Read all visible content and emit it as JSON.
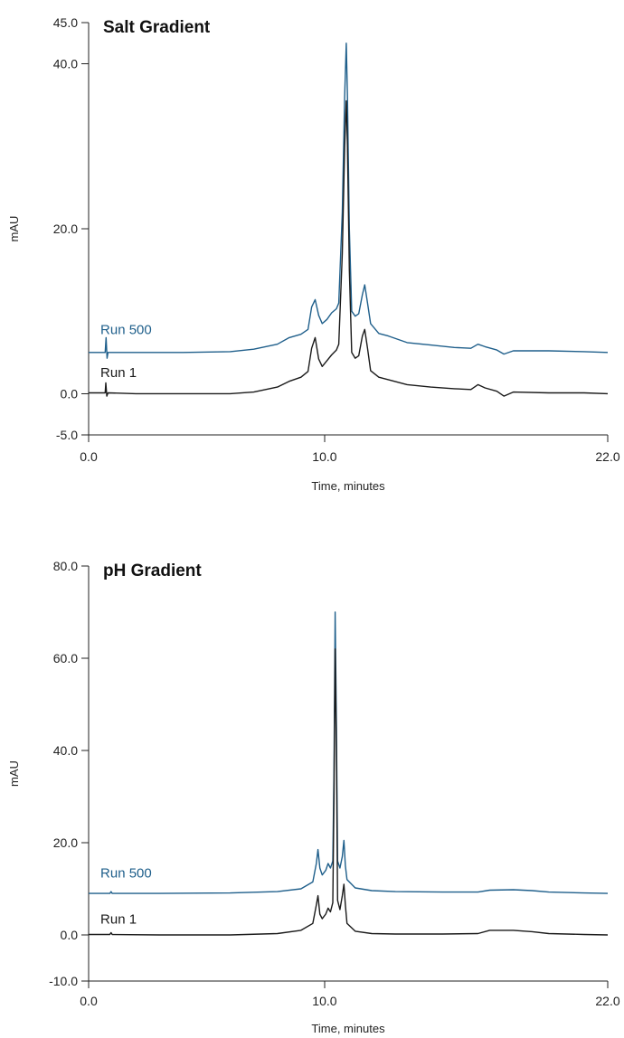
{
  "colors": {
    "run500": "#1f5f8b",
    "run1": "#1a1a1a",
    "axis": "#222222"
  },
  "chart_data": [
    {
      "type": "line",
      "title": "Salt Gradient",
      "xlabel": "Time, minutes",
      "ylabel": "mAU",
      "xlim": [
        0,
        22
      ],
      "ylim": [
        -5,
        45
      ],
      "x_ticks": [
        0,
        10,
        22
      ],
      "x_tick_labels": [
        "0.0",
        "10.0",
        "22.0"
      ],
      "y_ticks": [
        -5,
        0,
        20,
        40,
        45
      ],
      "y_tick_labels": [
        "-5.0",
        "0.0",
        "20.0",
        "40.0",
        "45.0"
      ],
      "series": [
        {
          "name": "Run 500",
          "color": "#1f5f8b",
          "label_at": [
            0.5,
            7.2
          ],
          "points": [
            [
              0,
              5.0
            ],
            [
              0.7,
              5.0
            ],
            [
              0.74,
              6.8
            ],
            [
              0.78,
              4.3
            ],
            [
              0.82,
              5.0
            ],
            [
              2,
              5.0
            ],
            [
              4,
              5.0
            ],
            [
              6,
              5.1
            ],
            [
              7,
              5.4
            ],
            [
              8,
              6.0
            ],
            [
              8.5,
              6.8
            ],
            [
              9.0,
              7.2
            ],
            [
              9.3,
              7.8
            ],
            [
              9.45,
              10.5
            ],
            [
              9.6,
              11.4
            ],
            [
              9.75,
              9.5
            ],
            [
              9.9,
              8.5
            ],
            [
              10.1,
              9.0
            ],
            [
              10.3,
              9.8
            ],
            [
              10.5,
              10.3
            ],
            [
              10.6,
              11.0
            ],
            [
              10.75,
              22.0
            ],
            [
              10.85,
              36.0
            ],
            [
              10.92,
              42.5
            ],
            [
              10.97,
              36.0
            ],
            [
              11.05,
              20.0
            ],
            [
              11.15,
              10.0
            ],
            [
              11.3,
              9.4
            ],
            [
              11.45,
              9.7
            ],
            [
              11.6,
              12.0
            ],
            [
              11.7,
              13.2
            ],
            [
              11.82,
              11.0
            ],
            [
              11.95,
              8.5
            ],
            [
              12.3,
              7.3
            ],
            [
              12.7,
              7.0
            ],
            [
              13.5,
              6.2
            ],
            [
              14.5,
              5.9
            ],
            [
              15.5,
              5.6
            ],
            [
              16.2,
              5.5
            ],
            [
              16.5,
              6.0
            ],
            [
              16.8,
              5.7
            ],
            [
              17.3,
              5.3
            ],
            [
              17.6,
              4.8
            ],
            [
              18.0,
              5.2
            ],
            [
              19.5,
              5.2
            ],
            [
              21,
              5.1
            ],
            [
              22,
              5.0
            ]
          ]
        },
        {
          "name": "Run 1",
          "color": "#1a1a1a",
          "label_at": [
            0.5,
            2.0
          ],
          "points": [
            [
              0,
              0.1
            ],
            [
              0.7,
              0.1
            ],
            [
              0.73,
              1.3
            ],
            [
              0.77,
              -0.3
            ],
            [
              0.82,
              0.1
            ],
            [
              2,
              0.0
            ],
            [
              4,
              0.0
            ],
            [
              6,
              0.0
            ],
            [
              7,
              0.2
            ],
            [
              8,
              0.8
            ],
            [
              8.5,
              1.5
            ],
            [
              9.0,
              2.0
            ],
            [
              9.3,
              2.7
            ],
            [
              9.45,
              5.5
            ],
            [
              9.6,
              6.8
            ],
            [
              9.75,
              4.2
            ],
            [
              9.9,
              3.3
            ],
            [
              10.1,
              4.0
            ],
            [
              10.3,
              4.7
            ],
            [
              10.5,
              5.3
            ],
            [
              10.6,
              6.0
            ],
            [
              10.75,
              17.0
            ],
            [
              10.85,
              30.0
            ],
            [
              10.92,
              35.5
            ],
            [
              10.97,
              30.0
            ],
            [
              11.05,
              15.0
            ],
            [
              11.15,
              5.0
            ],
            [
              11.3,
              4.3
            ],
            [
              11.45,
              4.6
            ],
            [
              11.6,
              7.0
            ],
            [
              11.7,
              7.8
            ],
            [
              11.82,
              5.5
            ],
            [
              11.95,
              2.8
            ],
            [
              12.3,
              2.0
            ],
            [
              12.7,
              1.7
            ],
            [
              13.5,
              1.1
            ],
            [
              14.5,
              0.8
            ],
            [
              15.5,
              0.6
            ],
            [
              16.2,
              0.5
            ],
            [
              16.5,
              1.1
            ],
            [
              16.8,
              0.7
            ],
            [
              17.3,
              0.3
            ],
            [
              17.6,
              -0.3
            ],
            [
              18.0,
              0.2
            ],
            [
              19.5,
              0.1
            ],
            [
              21,
              0.1
            ],
            [
              22,
              0.0
            ]
          ]
        }
      ]
    },
    {
      "type": "line",
      "title": "pH Gradient",
      "xlabel": "Time, minutes",
      "ylabel": "mAU",
      "xlim": [
        0,
        22
      ],
      "ylim": [
        -10,
        80
      ],
      "x_ticks": [
        0,
        10,
        22
      ],
      "x_tick_labels": [
        "0.0",
        "10.0",
        "22.0"
      ],
      "y_ticks": [
        -10,
        0,
        20,
        40,
        60,
        80
      ],
      "y_tick_labels": [
        "-10.0",
        "0.0",
        "20.0",
        "40.0",
        "60.0",
        "80.0"
      ],
      "series": [
        {
          "name": "Run 500",
          "color": "#1f5f8b",
          "label_at": [
            0.5,
            12.5
          ],
          "points": [
            [
              0,
              9.0
            ],
            [
              0.9,
              9.0
            ],
            [
              0.95,
              9.4
            ],
            [
              1.0,
              9.0
            ],
            [
              3,
              9.0
            ],
            [
              6,
              9.1
            ],
            [
              8,
              9.4
            ],
            [
              9.0,
              10.0
            ],
            [
              9.5,
              11.5
            ],
            [
              9.65,
              15.5
            ],
            [
              9.72,
              18.5
            ],
            [
              9.8,
              14.5
            ],
            [
              9.9,
              13.0
            ],
            [
              10.05,
              14.0
            ],
            [
              10.15,
              15.5
            ],
            [
              10.25,
              14.5
            ],
            [
              10.35,
              16.0
            ],
            [
              10.4,
              35.0
            ],
            [
              10.45,
              70.0
            ],
            [
              10.5,
              45.0
            ],
            [
              10.55,
              16.0
            ],
            [
              10.65,
              14.5
            ],
            [
              10.75,
              17.0
            ],
            [
              10.82,
              20.5
            ],
            [
              10.88,
              15.0
            ],
            [
              10.95,
              12.0
            ],
            [
              11.3,
              10.2
            ],
            [
              12,
              9.6
            ],
            [
              13,
              9.4
            ],
            [
              15,
              9.3
            ],
            [
              16.5,
              9.3
            ],
            [
              17,
              9.7
            ],
            [
              18,
              9.8
            ],
            [
              18.8,
              9.6
            ],
            [
              19.5,
              9.3
            ],
            [
              21,
              9.1
            ],
            [
              22,
              9.0
            ]
          ]
        },
        {
          "name": "Run 1",
          "color": "#1a1a1a",
          "label_at": [
            0.5,
            2.5
          ],
          "points": [
            [
              0,
              0.1
            ],
            [
              0.9,
              0.1
            ],
            [
              0.95,
              0.5
            ],
            [
              1.0,
              0.1
            ],
            [
              3,
              0.0
            ],
            [
              6,
              0.0
            ],
            [
              8,
              0.3
            ],
            [
              9.0,
              1.0
            ],
            [
              9.5,
              2.5
            ],
            [
              9.65,
              6.5
            ],
            [
              9.72,
              8.5
            ],
            [
              9.8,
              4.5
            ],
            [
              9.9,
              3.5
            ],
            [
              10.05,
              4.5
            ],
            [
              10.15,
              5.8
            ],
            [
              10.25,
              5.0
            ],
            [
              10.35,
              7.0
            ],
            [
              10.4,
              30.0
            ],
            [
              10.45,
              62.0
            ],
            [
              10.5,
              40.0
            ],
            [
              10.55,
              7.5
            ],
            [
              10.65,
              5.5
            ],
            [
              10.75,
              8.5
            ],
            [
              10.82,
              11.0
            ],
            [
              10.88,
              6.5
            ],
            [
              10.95,
              2.5
            ],
            [
              11.3,
              0.8
            ],
            [
              12,
              0.3
            ],
            [
              13,
              0.2
            ],
            [
              15,
              0.2
            ],
            [
              16.5,
              0.3
            ],
            [
              17,
              1.0
            ],
            [
              18,
              1.0
            ],
            [
              18.8,
              0.7
            ],
            [
              19.5,
              0.3
            ],
            [
              21,
              0.1
            ],
            [
              22,
              0.0
            ]
          ]
        }
      ]
    }
  ]
}
